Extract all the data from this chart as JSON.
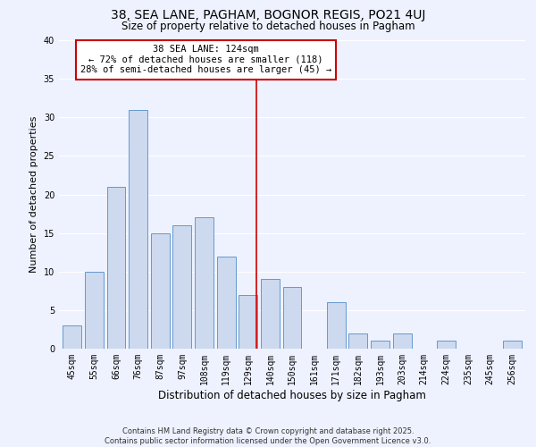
{
  "title": "38, SEA LANE, PAGHAM, BOGNOR REGIS, PO21 4UJ",
  "subtitle": "Size of property relative to detached houses in Pagham",
  "xlabel": "Distribution of detached houses by size in Pagham",
  "ylabel": "Number of detached properties",
  "bar_labels": [
    "45sqm",
    "55sqm",
    "66sqm",
    "76sqm",
    "87sqm",
    "97sqm",
    "108sqm",
    "119sqm",
    "129sqm",
    "140sqm",
    "150sqm",
    "161sqm",
    "171sqm",
    "182sqm",
    "193sqm",
    "203sqm",
    "214sqm",
    "224sqm",
    "235sqm",
    "245sqm",
    "256sqm"
  ],
  "bar_values": [
    3,
    10,
    21,
    31,
    15,
    16,
    17,
    12,
    7,
    9,
    8,
    0,
    6,
    2,
    1,
    2,
    0,
    1,
    0,
    0,
    1
  ],
  "bar_color": "#ccd9ee",
  "bar_edge_color": "#6699cc",
  "ylim": [
    0,
    40
  ],
  "yticks": [
    0,
    5,
    10,
    15,
    20,
    25,
    30,
    35,
    40
  ],
  "vline_x": 8.36,
  "vline_color": "#cc0000",
  "annotation_title": "38 SEA LANE: 124sqm",
  "annotation_line1": "← 72% of detached houses are smaller (118)",
  "annotation_line2": "28% of semi-detached houses are larger (45) →",
  "annotation_box_color": "#cc0000",
  "bg_color": "#eef2ff",
  "footer1": "Contains HM Land Registry data © Crown copyright and database right 2025.",
  "footer2": "Contains public sector information licensed under the Open Government Licence v3.0.",
  "grid_color": "#ffffff",
  "title_fontsize": 10,
  "subtitle_fontsize": 8.5,
  "xlabel_fontsize": 8.5,
  "ylabel_fontsize": 8,
  "tick_fontsize": 7,
  "annotation_fontsize": 7.5,
  "footer_fontsize": 6
}
